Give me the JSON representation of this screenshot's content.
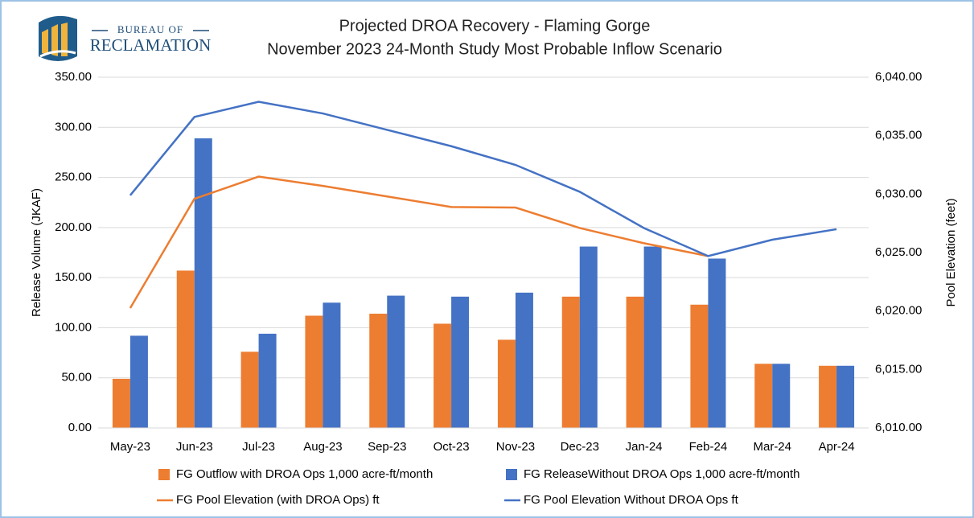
{
  "chart_data": {
    "type": "bar",
    "logo": {
      "line1": "BUREAU OF",
      "line2": "RECLAMATION"
    },
    "title": "Projected DROA Recovery - Flaming Gorge",
    "subtitle": "November 2023 24-Month Study Most Probable Inflow Scenario",
    "ylabel": "Release Volume (JKAF)",
    "y2label": "Pool Elevation (feet)",
    "categories": [
      "May-23",
      "Jun-23",
      "Jul-23",
      "Aug-23",
      "Sep-23",
      "Oct-23",
      "Nov-23",
      "Dec-23",
      "Jan-24",
      "Feb-24",
      "Mar-24",
      "Apr-24"
    ],
    "series": [
      {
        "name": "FG Outflow with DROA Ops 1,000 acre-ft/month",
        "type": "bar",
        "color": "#ed7d31",
        "values": [
          49,
          157,
          76,
          112,
          114,
          104,
          88,
          131,
          131,
          123,
          64,
          62
        ]
      },
      {
        "name": "FG ReleaseWithout DROA Ops 1,000 acre-ft/month",
        "type": "bar",
        "color": "#4472c4",
        "values": [
          92,
          289,
          94,
          125,
          132,
          131,
          135,
          181,
          181,
          169,
          64,
          62
        ]
      },
      {
        "name": "FG Pool Elevation (with DROA Ops) ft",
        "type": "line",
        "axis": "y2",
        "color": "#ed7d31",
        "values": [
          6020.25,
          6029.6,
          6031.5,
          6030.7,
          6029.8,
          6028.9,
          6028.85,
          6027.1,
          6025.8,
          6024.7,
          null,
          null
        ]
      },
      {
        "name": "FG Pool Elevation Without DROA Ops ft",
        "type": "line",
        "axis": "y2",
        "color": "#4472c4",
        "values": [
          6029.9,
          6036.6,
          6037.9,
          6036.9,
          6035.5,
          6034.1,
          6032.5,
          6030.2,
          6027.1,
          6024.7,
          6026.1,
          6027.0
        ]
      }
    ],
    "ylim": [
      0,
      350
    ],
    "yticks": [
      {
        "value": 0,
        "label": "0.00"
      },
      {
        "value": 50,
        "label": "50.00"
      },
      {
        "value": 100,
        "label": "100.00"
      },
      {
        "value": 150,
        "label": "150.00"
      },
      {
        "value": 200,
        "label": "200.00"
      },
      {
        "value": 250,
        "label": "250.00"
      },
      {
        "value": 300,
        "label": "300.00"
      },
      {
        "value": 350,
        "label": "350.00"
      }
    ],
    "y2lim": [
      6010,
      6040
    ],
    "y2ticks": [
      {
        "value": 6010,
        "label": "6,010.00"
      },
      {
        "value": 6015,
        "label": "6,015.00"
      },
      {
        "value": 6020,
        "label": "6,020.00"
      },
      {
        "value": 6025,
        "label": "6,025.00"
      },
      {
        "value": 6030,
        "label": "6,030.00"
      },
      {
        "value": 6035,
        "label": "6,035.00"
      },
      {
        "value": 6040,
        "label": "6,040.00"
      }
    ],
    "grid": true,
    "legend": "bottom"
  }
}
